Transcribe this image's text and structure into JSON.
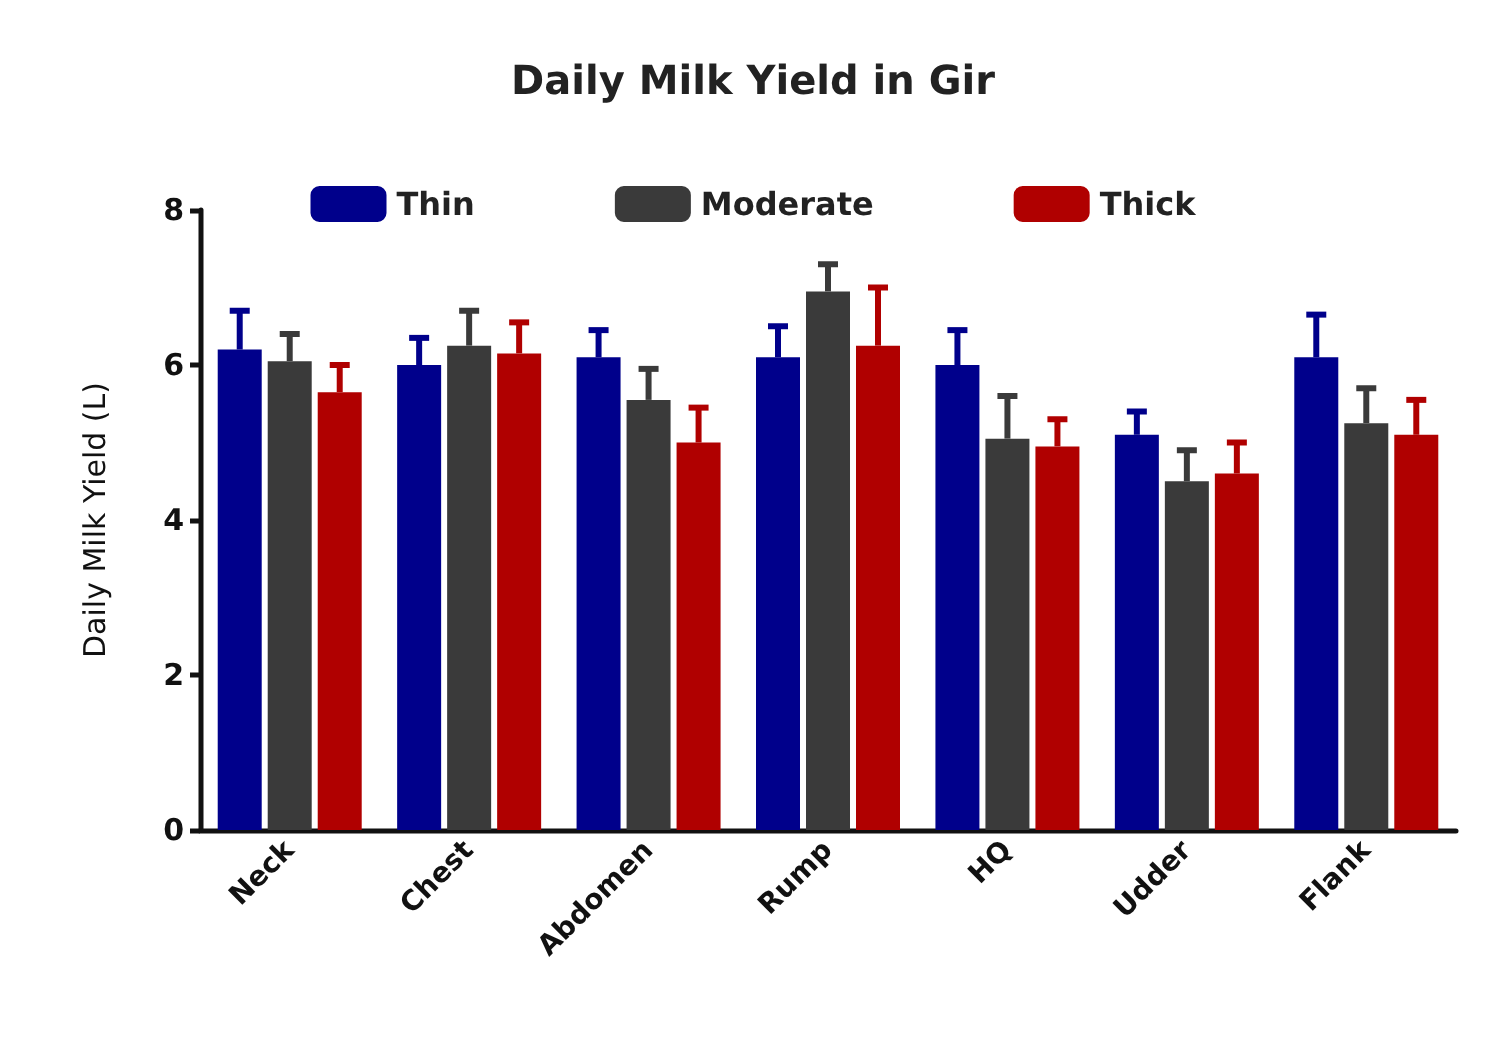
{
  "chart_data": {
    "type": "bar",
    "title": "Daily Milk Yield in Gir",
    "ylabel": "Daily Milk Yield (L)",
    "categories": [
      "Neck",
      "Chest",
      "Abdomen",
      "Rump",
      "HQ",
      "Udder",
      "Flank"
    ],
    "series": [
      {
        "name": "Thin",
        "color": "#00008b",
        "values": [
          6.2,
          6.0,
          6.1,
          6.1,
          6.0,
          5.1,
          6.1
        ],
        "errors": [
          [
            6.2,
            6.7
          ],
          [
            6.0,
            6.35
          ],
          [
            6.1,
            6.45
          ],
          [
            6.1,
            6.5
          ],
          [
            6.0,
            6.45
          ],
          [
            5.1,
            5.4
          ],
          [
            6.1,
            6.65
          ]
        ]
      },
      {
        "name": "Moderate",
        "color": "#3a3a3a",
        "values": [
          6.05,
          6.25,
          5.55,
          6.95,
          5.05,
          4.5,
          5.25
        ],
        "errors": [
          [
            6.05,
            6.4
          ],
          [
            6.25,
            6.7
          ],
          [
            5.55,
            5.95
          ],
          [
            6.95,
            7.3
          ],
          [
            5.05,
            5.6
          ],
          [
            4.5,
            4.9
          ],
          [
            5.25,
            5.7
          ]
        ]
      },
      {
        "name": "Thick",
        "color": "#b00000",
        "values": [
          5.65,
          6.15,
          5.0,
          6.25,
          4.95,
          4.6,
          5.1
        ],
        "errors": [
          [
            5.65,
            6.0
          ],
          [
            6.15,
            6.55
          ],
          [
            5.0,
            5.45
          ],
          [
            6.25,
            7.0
          ],
          [
            4.95,
            5.3
          ],
          [
            4.6,
            5.0
          ],
          [
            5.1,
            5.55
          ]
        ]
      }
    ],
    "ylim": [
      0,
      8
    ],
    "yticks": [
      0,
      2,
      4,
      6,
      8
    ],
    "grid": false,
    "legend": "top"
  }
}
